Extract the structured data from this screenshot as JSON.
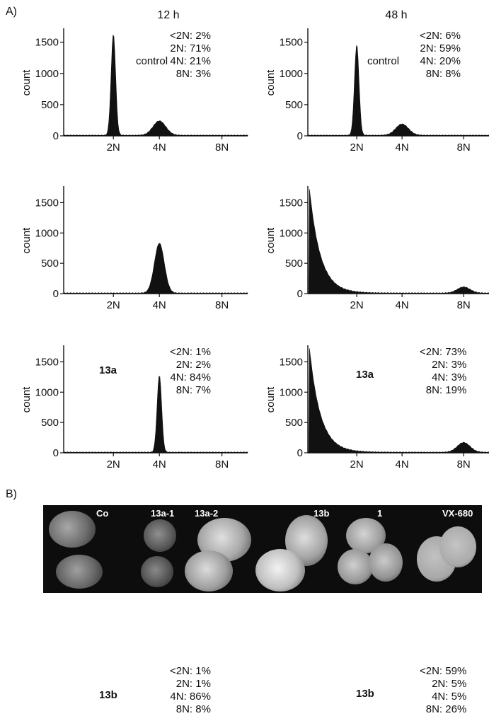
{
  "panel_a_label": "A)",
  "panel_b_label": "B)",
  "columns": [
    "12 h",
    "48 h"
  ],
  "ylabel": "count",
  "chart_data": [
    {
      "type": "area",
      "time": "12 h",
      "condition": "control",
      "xticks": [
        "2N",
        "4N",
        "8N"
      ],
      "yticks": [
        0,
        500,
        1000,
        1500
      ],
      "ylim": [
        0,
        1700
      ],
      "x_positions": {
        "2N": 2,
        "4N": 4,
        "8N": 8
      },
      "peaks": [
        {
          "at": "2N",
          "height": 1620
        },
        {
          "at": "4N",
          "height": 230
        }
      ],
      "stats": [
        {
          "label": "<2N:",
          "value": "2%"
        },
        {
          "label": "2N:",
          "value": "71%"
        },
        {
          "label": "4N:",
          "value": "21%"
        },
        {
          "label": "8N:",
          "value": "3%"
        }
      ]
    },
    {
      "type": "area",
      "time": "48 h",
      "condition": "control",
      "xticks": [
        "2N",
        "4N",
        "8N"
      ],
      "yticks": [
        0,
        500,
        1000,
        1500
      ],
      "ylim": [
        0,
        1700
      ],
      "x_positions": {
        "2N": 2,
        "4N": 4,
        "8N": 8
      },
      "peaks": [
        {
          "at": "2N",
          "height": 1450
        },
        {
          "at": "4N",
          "height": 180
        }
      ],
      "stats": [
        {
          "label": "<2N:",
          "value": "6%"
        },
        {
          "label": "2N:",
          "value": "59%"
        },
        {
          "label": "4N:",
          "value": "20%"
        },
        {
          "label": "8N:",
          "value": "8%"
        }
      ]
    },
    {
      "type": "area",
      "time": "12 h",
      "condition": "13a",
      "xticks": [
        "2N",
        "4N",
        "8N"
      ],
      "yticks": [
        0,
        500,
        1000,
        1500
      ],
      "ylim": [
        0,
        1750
      ],
      "x_positions": {
        "2N": 2,
        "4N": 4,
        "8N": 8
      },
      "peaks": [
        {
          "at": "4N",
          "height": 820
        }
      ],
      "stats": [
        {
          "label": "<2N:",
          "value": "1%"
        },
        {
          "label": "2N:",
          "value": "2%"
        },
        {
          "label": "4N:",
          "value": "84%"
        },
        {
          "label": "8N:",
          "value": "7%"
        }
      ]
    },
    {
      "type": "area",
      "time": "48 h",
      "condition": "13a",
      "xticks": [
        "2N",
        "4N",
        "8N"
      ],
      "yticks": [
        0,
        500,
        1000,
        1500
      ],
      "ylim": [
        0,
        1750
      ],
      "x_positions": {
        "2N": 2,
        "4N": 4,
        "8N": 8
      },
      "peaks": [
        {
          "at": "<2N",
          "height": 1750
        },
        {
          "at": "8N",
          "height": 100
        }
      ],
      "stats": [
        {
          "label": "<2N:",
          "value": "73%"
        },
        {
          "label": "2N:",
          "value": "3%"
        },
        {
          "label": "4N:",
          "value": "3%"
        },
        {
          "label": "8N:",
          "value": "19%"
        }
      ]
    },
    {
      "type": "area",
      "time": "12 h",
      "condition": "13b",
      "xticks": [
        "2N",
        "4N",
        "8N"
      ],
      "yticks": [
        0,
        500,
        1000,
        1500
      ],
      "ylim": [
        0,
        1750
      ],
      "x_positions": {
        "2N": 2,
        "4N": 4,
        "8N": 8
      },
      "peaks": [
        {
          "at": "4N",
          "height": 1270
        }
      ],
      "stats": [
        {
          "label": "<2N:",
          "value": "1%"
        },
        {
          "label": "2N:",
          "value": "1%"
        },
        {
          "label": "4N:",
          "value": "86%"
        },
        {
          "label": "8N:",
          "value": "8%"
        }
      ]
    },
    {
      "type": "area",
      "time": "48 h",
      "condition": "13b",
      "xticks": [
        "2N",
        "4N",
        "8N"
      ],
      "yticks": [
        0,
        500,
        1000,
        1500
      ],
      "ylim": [
        0,
        1750
      ],
      "x_positions": {
        "2N": 2,
        "4N": 4,
        "8N": 8
      },
      "peaks": [
        {
          "at": "<2N",
          "height": 1750
        },
        {
          "at": "8N",
          "height": 160
        }
      ],
      "stats": [
        {
          "label": "<2N:",
          "value": "59%"
        },
        {
          "label": "2N:",
          "value": "5%"
        },
        {
          "label": "4N:",
          "value": "5%"
        },
        {
          "label": "8N:",
          "value": "26%"
        }
      ]
    }
  ],
  "micrograph_labels": [
    "Co",
    "13a-1",
    "13a-2",
    "13b",
    "1",
    "VX-680"
  ],
  "colors": {
    "fill": "#111111",
    "micro_bg": "#0d0d0d"
  }
}
